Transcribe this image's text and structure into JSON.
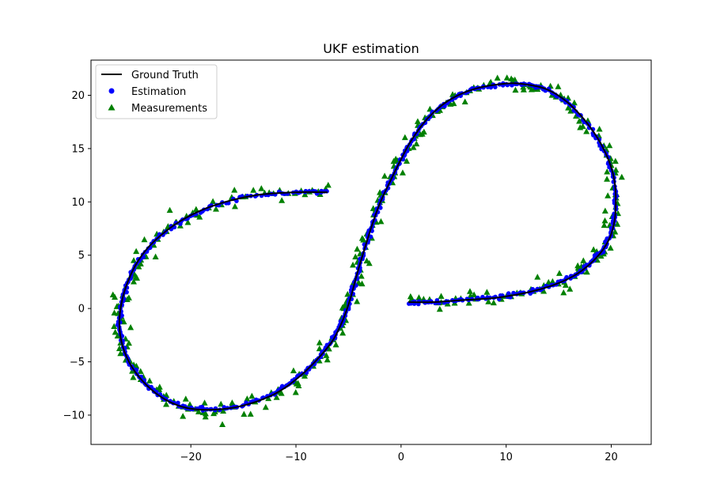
{
  "chart_data": {
    "type": "scatter",
    "title": "UKF estimation",
    "xlabel": "",
    "ylabel": "",
    "xlim": [
      -29.5,
      23.8
    ],
    "ylim": [
      -12.75,
      23.3
    ],
    "xticks": [
      -20,
      -10,
      0,
      10,
      20
    ],
    "yticks": [
      -10,
      -5,
      0,
      5,
      10,
      15,
      20
    ],
    "xtick_labels": [
      "−20",
      "−10",
      "0",
      "10",
      "20"
    ],
    "ytick_labels": [
      "−10",
      "−5",
      "0",
      "5",
      "10",
      "15",
      "20"
    ],
    "grid": false,
    "legend_position": "top-left",
    "colors": {
      "ground_truth": "#000000",
      "estimation": "#0000ff",
      "measurements": "#008000"
    },
    "series": [
      {
        "name": "Ground Truth",
        "kind": "line",
        "x": [
          -7,
          -10,
          -14,
          -18,
          -21,
          -23.5,
          -25,
          -26,
          -26.6,
          -26.8,
          -26.5,
          -25.6,
          -24.2,
          -22.5,
          -20.5,
          -18,
          -15,
          -12,
          -9.8,
          -8,
          -6.5,
          -5.5,
          -4.8,
          -4.2,
          -3.5,
          -2.8,
          -2,
          -1,
          0,
          1,
          2.5,
          4.5,
          7,
          10,
          12,
          14,
          16,
          18,
          19.5,
          20.3,
          20.4,
          20,
          19.2,
          18,
          16.5,
          14.5,
          12,
          9,
          6,
          3,
          0.7
        ],
        "y": [
          10.9,
          10.9,
          10.6,
          9.6,
          8.2,
          6.3,
          4.5,
          2.5,
          0.5,
          -1.5,
          -3.5,
          -5.5,
          -7.2,
          -8.5,
          -9.3,
          -9.5,
          -9.1,
          -8,
          -6.5,
          -4.8,
          -3,
          -1,
          1,
          3.2,
          5.5,
          7.7,
          9.9,
          12,
          14,
          15.8,
          17.8,
          19.5,
          20.6,
          21.1,
          21,
          20.5,
          19.2,
          17,
          14.5,
          12,
          9,
          7,
          5.5,
          4.2,
          3.1,
          2.2,
          1.5,
          1,
          0.8,
          0.6,
          0.6
        ]
      },
      {
        "name": "Estimation",
        "kind": "scatter-circle",
        "points_per_segment": 12,
        "x": [
          -7,
          -10,
          -14,
          -18,
          -21,
          -23.5,
          -25,
          -26,
          -26.6,
          -26.8,
          -26.5,
          -25.6,
          -24.2,
          -22.5,
          -20.5,
          -18,
          -15,
          -12,
          -9.8,
          -8,
          -6.5,
          -5.5,
          -4.8,
          -4.2,
          -3.5,
          -2.8,
          -2,
          -1,
          0,
          1,
          2.5,
          4.5,
          7,
          10,
          12,
          14,
          16,
          18,
          19.5,
          20.3,
          20.4,
          20,
          19.2,
          18,
          16.5,
          14.5,
          12,
          9,
          6,
          3,
          0.7
        ],
        "y": [
          10.9,
          10.9,
          10.6,
          9.6,
          8.2,
          6.3,
          4.5,
          2.5,
          0.5,
          -1.5,
          -3.5,
          -5.5,
          -7.2,
          -8.5,
          -9.3,
          -9.5,
          -9.1,
          -8,
          -6.5,
          -4.8,
          -3,
          -1,
          1,
          3.2,
          5.5,
          7.7,
          9.9,
          12,
          14,
          15.8,
          17.8,
          19.5,
          20.6,
          21.1,
          21,
          20.5,
          19.2,
          17,
          14.5,
          12,
          9,
          7,
          5.5,
          4.2,
          3.1,
          2.2,
          1.5,
          1,
          0.8,
          0.6,
          0.6
        ],
        "noise": 0.12
      },
      {
        "name": "Measurements",
        "kind": "scatter-triangle",
        "points_per_segment": 8,
        "x": [
          -7,
          -10,
          -14,
          -18,
          -21,
          -23.5,
          -25,
          -26,
          -26.6,
          -26.8,
          -26.5,
          -25.6,
          -24.2,
          -22.5,
          -20.5,
          -18,
          -15,
          -12,
          -9.8,
          -8,
          -6.5,
          -5.5,
          -4.8,
          -4.2,
          -3.5,
          -2.8,
          -2,
          -1,
          0,
          1,
          2.5,
          4.5,
          7,
          10,
          12,
          14,
          16,
          18,
          19.5,
          20.3,
          20.4,
          20,
          19.2,
          18,
          16.5,
          14.5,
          12,
          9,
          6,
          3,
          0.7
        ],
        "y": [
          10.9,
          10.9,
          10.6,
          9.6,
          8.2,
          6.3,
          4.5,
          2.5,
          0.5,
          -1.5,
          -3.5,
          -5.5,
          -7.2,
          -8.5,
          -9.3,
          -9.5,
          -9.1,
          -8,
          -6.5,
          -4.8,
          -3,
          -1,
          1,
          3.2,
          5.5,
          7.7,
          9.9,
          12,
          14,
          15.8,
          17.8,
          19.5,
          20.6,
          21.1,
          21,
          20.5,
          19.2,
          17,
          14.5,
          12,
          9,
          7,
          5.5,
          4.2,
          3.1,
          2.2,
          1.5,
          1,
          0.8,
          0.6,
          0.6
        ],
        "noise": 0.55,
        "outliers": [
          {
            "x": -17,
            "y": -10.9
          },
          {
            "x": -27.3,
            "y": -1.7
          },
          {
            "x": 21,
            "y": 12.3
          },
          {
            "x": -22,
            "y": 9.2
          }
        ]
      }
    ],
    "legend": [
      "Ground Truth",
      "Estimation",
      "Measurements"
    ]
  }
}
